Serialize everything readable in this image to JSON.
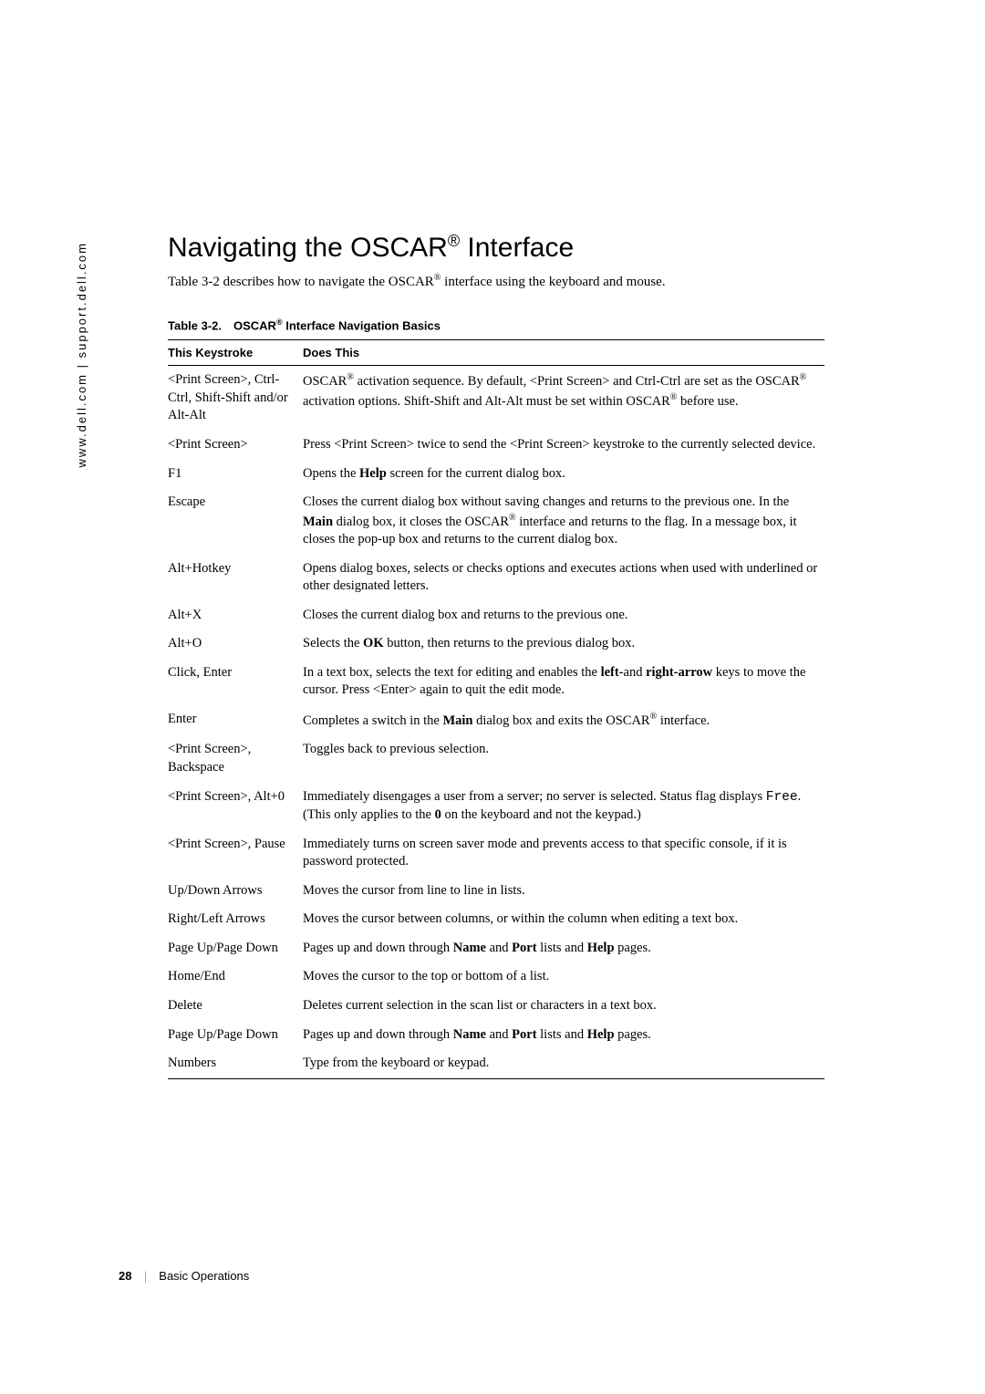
{
  "sidebar": "www.dell.com | support.dell.com",
  "heading_pre": "Navigating the OSCAR",
  "heading_post": " Interface",
  "intro_pre": "Table 3-2 describes how to navigate the OSCAR",
  "intro_post": " interface using the keyboard and mouse.",
  "table_caption_pre": "Table 3-2. OSCAR",
  "table_caption_post": " Interface Navigation Basics",
  "col1": "This Keystroke",
  "col2": "Does This",
  "rows": [
    {
      "k": "<Print Screen>, Ctrl-Ctrl, Shift-Shift and/or Alt-Alt",
      "d": "OSCAR<sup class='reg'>®</sup> activation sequence. By default, <Print Screen> and Ctrl-Ctrl are set as the OSCAR<sup class='reg'>®</sup> activation options. Shift-Shift and Alt-Alt must be set within OSCAR<sup class='reg'>®</sup> before use."
    },
    {
      "k": "<Print Screen>",
      "d": "Press <Print Screen> twice to send the <Print Screen> keystroke to the currently selected device."
    },
    {
      "k": "F1",
      "d": "Opens the <span class='bold'>Help</span> screen for the current dialog box."
    },
    {
      "k": "Escape",
      "d": "Closes the current dialog box without saving changes and returns to the previous one. In the <span class='bold'>Main</span> dialog box, it closes the OSCAR<sup class='reg'>®</sup> interface and returns to the flag. In a message box, it closes the pop-up box and returns to the current dialog box."
    },
    {
      "k": "Alt+Hotkey",
      "d": "Opens dialog boxes, selects or checks options and executes actions when used with underlined or other designated letters."
    },
    {
      "k": "Alt+X",
      "d": "Closes the current dialog box and returns to the previous one."
    },
    {
      "k": "Alt+O",
      "d": "Selects the <span class='bold'>OK</span> button, then returns to the previous dialog box."
    },
    {
      "k": "Click, Enter",
      "d": "In a text box, selects the text for editing and enables the <span class='bold'>left-</span>and <span class='bold'>right-arrow</span> keys to move the cursor. Press <Enter> again to quit the edit mode."
    },
    {
      "k": "Enter",
      "d": "Completes a switch in the <span class='bold'>Main</span> dialog box and exits the OSCAR<sup class='reg'>®</sup> interface."
    },
    {
      "k": "<Print Screen>, Backspace",
      "d": "Toggles back to previous selection."
    },
    {
      "k": "<Print Screen>, Alt+0",
      "d": "Immediately disengages a user from a server; no server is selected. Status flag displays <span class='mono'>Free</span>. (This only applies to the <span class='bold'>0</span> on the keyboard and not the keypad.)"
    },
    {
      "k": "<Print Screen>, Pause",
      "d": "Immediately turns on screen saver mode and prevents access to that specific console, if it is password protected."
    },
    {
      "k": "Up/Down Arrows",
      "d": "Moves the cursor from line to line in lists."
    },
    {
      "k": "Right/Left Arrows",
      "d": "Moves the cursor between columns, or within the column when editing a text box."
    },
    {
      "k": "Page Up/Page Down",
      "d": "Pages up and down through <span class='bold'>Name</span> and <span class='bold'>Port</span> lists and <span class='bold'>Help</span> pages."
    },
    {
      "k": "Home/End",
      "d": "Moves the cursor to the top or bottom of a list."
    },
    {
      "k": "Delete",
      "d": "Deletes current selection in the scan list or characters in a text box."
    },
    {
      "k": "Page Up/Page Down",
      "d": "Pages up and down through <span class='bold'>Name</span> and <span class='bold'>Port</span> lists and <span class='bold'>Help</span> pages."
    },
    {
      "k": "Numbers",
      "d": "Type from the keyboard or keypad."
    }
  ],
  "page_number": "28",
  "footer_section": "Basic Operations",
  "reg_symbol": "®"
}
